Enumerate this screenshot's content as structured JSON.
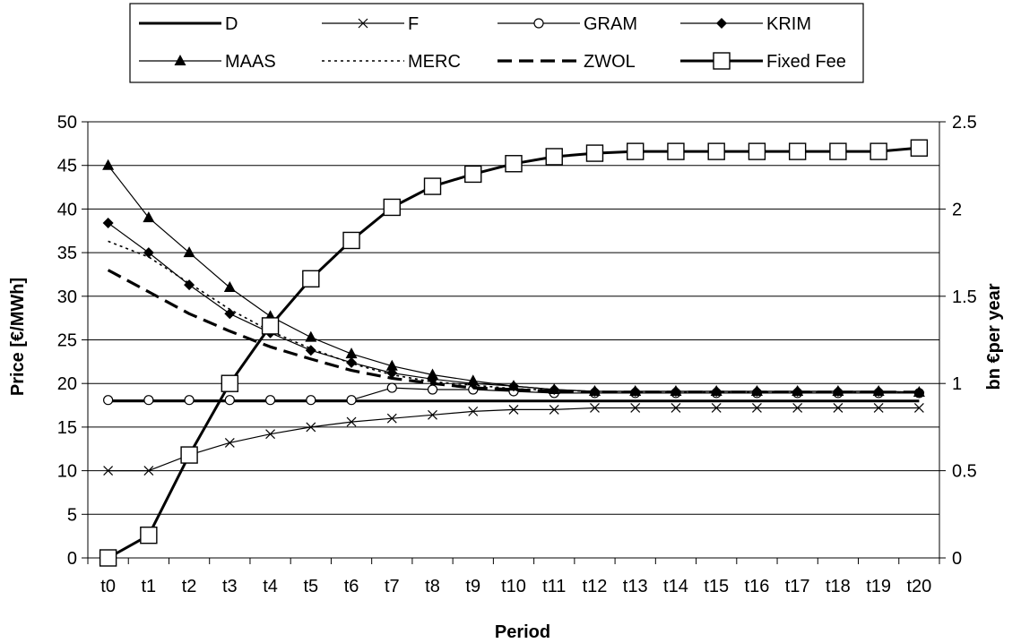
{
  "chart_data": {
    "type": "line",
    "title": "",
    "xlabel": "Period",
    "ylabel": "Price [€/MWh]",
    "y2label": "bn €per year",
    "categories": [
      "t0",
      "t1",
      "t2",
      "t3",
      "t4",
      "t5",
      "t6",
      "t7",
      "t8",
      "t9",
      "t10",
      "t11",
      "t12",
      "t13",
      "t14",
      "t15",
      "t16",
      "t17",
      "t18",
      "t19",
      "t20"
    ],
    "ylim": [
      0,
      50
    ],
    "yticks": [
      "0",
      "5",
      "10",
      "15",
      "20",
      "25",
      "30",
      "35",
      "40",
      "45",
      "50"
    ],
    "y2lim": [
      0,
      2.5
    ],
    "y2ticks": [
      "0",
      "0.5",
      "1",
      "1.5",
      "2",
      "2.5"
    ],
    "grid": true,
    "legend_position": "top",
    "series": [
      {
        "name": "D",
        "axis": "left",
        "style": "solid-thick",
        "marker": "none",
        "values": [
          18,
          18,
          18,
          18,
          18,
          18,
          18,
          18,
          18,
          18,
          18,
          18,
          18,
          18,
          18,
          18,
          18,
          18,
          18,
          18,
          18
        ]
      },
      {
        "name": "F",
        "axis": "left",
        "style": "solid-thin",
        "marker": "x",
        "values": [
          10,
          10,
          11.8,
          13.2,
          14.2,
          15,
          15.6,
          16,
          16.4,
          16.8,
          17,
          17,
          17.2,
          17.2,
          17.2,
          17.2,
          17.2,
          17.2,
          17.2,
          17.2,
          17.2
        ]
      },
      {
        "name": "GRAM",
        "axis": "left",
        "style": "solid-thin",
        "marker": "circle",
        "values": [
          18.1,
          18.1,
          18.1,
          18.1,
          18.1,
          18.1,
          18.1,
          19.5,
          19.3,
          19.3,
          19.1,
          18.9,
          18.9,
          18.9,
          18.9,
          18.9,
          18.9,
          18.9,
          18.9,
          18.9,
          18.9
        ]
      },
      {
        "name": "KRIM",
        "axis": "left",
        "style": "solid-thin",
        "marker": "diamond",
        "values": [
          38.4,
          35,
          31.3,
          28,
          25.8,
          23.8,
          22.4,
          21.2,
          20.5,
          20,
          19.7,
          19.3,
          19.1,
          19.1,
          19.1,
          19.1,
          19.1,
          19.1,
          19.1,
          19.1,
          19
        ]
      },
      {
        "name": "MAAS",
        "axis": "left",
        "style": "solid-thin",
        "marker": "triangle",
        "values": [
          45,
          39,
          35,
          31,
          27.7,
          25.3,
          23.4,
          22,
          21,
          20.3,
          19.7,
          19.3,
          19.1,
          19.1,
          19.1,
          19.1,
          19.1,
          19.1,
          19.1,
          19.1,
          19
        ]
      },
      {
        "name": "MERC",
        "axis": "left",
        "style": "dotted",
        "marker": "none",
        "values": [
          36.3,
          34.5,
          31.5,
          28.5,
          26,
          24,
          22.3,
          21,
          20.2,
          19.8,
          19.4,
          19.2,
          19.1,
          19,
          19,
          19,
          19,
          19,
          19,
          19,
          19
        ]
      },
      {
        "name": "ZWOL",
        "axis": "left",
        "style": "dashed",
        "marker": "none",
        "values": [
          33,
          30.5,
          28,
          26,
          24.2,
          22.8,
          21.5,
          20.6,
          20,
          19.5,
          19.3,
          19.1,
          19,
          19,
          19,
          19,
          19,
          19,
          19,
          19,
          19
        ]
      },
      {
        "name": "Fixed Fee",
        "axis": "right",
        "style": "solid-thick",
        "marker": "square",
        "values": [
          0,
          0.13,
          0.59,
          1,
          1.33,
          1.6,
          1.82,
          2.01,
          2.13,
          2.2,
          2.26,
          2.3,
          2.32,
          2.33,
          2.33,
          2.33,
          2.33,
          2.33,
          2.33,
          2.33,
          2.35
        ]
      }
    ]
  }
}
